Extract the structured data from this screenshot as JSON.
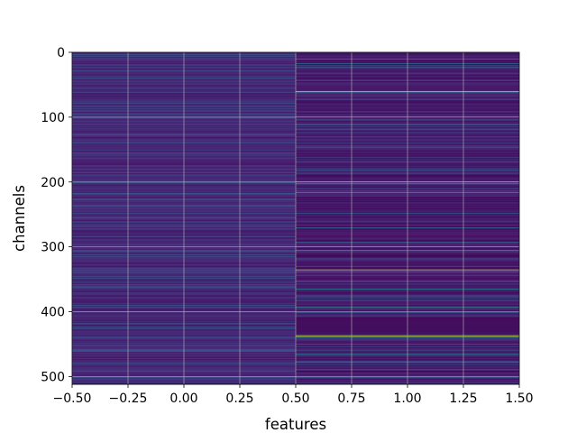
{
  "chart_data": {
    "type": "heatmap",
    "title": "",
    "xlabel": "features",
    "ylabel": "channels",
    "xlim": [
      -0.5,
      1.5
    ],
    "ylim": [
      512,
      0
    ],
    "x_ticks": [
      "−0.50",
      "−0.25",
      "0.00",
      "0.25",
      "0.50",
      "0.75",
      "1.00",
      "1.25",
      "1.50"
    ],
    "x_tick_values": [
      -0.5,
      -0.25,
      0.0,
      0.25,
      0.5,
      0.75,
      1.0,
      1.25,
      1.5
    ],
    "y_ticks": [
      "0",
      "100",
      "200",
      "300",
      "400",
      "500"
    ],
    "y_tick_values": [
      0,
      100,
      200,
      300,
      400,
      500
    ],
    "grid": true,
    "colormap": "viridis",
    "n_rows": 512,
    "n_columns": 2,
    "columns": [
      {
        "feature_index": 0,
        "base_value": 0.12,
        "notes": "mostly uniform dark purple with faint streaks",
        "highlight_rows": [
          {
            "row": 6,
            "value": 0.22
          },
          {
            "row": 22,
            "value": 0.2
          },
          {
            "row": 36,
            "value": 0.2
          },
          {
            "row": 55,
            "value": 0.2
          },
          {
            "row": 78,
            "value": 0.28
          },
          {
            "row": 83,
            "value": 0.25
          },
          {
            "row": 95,
            "value": 0.24
          },
          {
            "row": 112,
            "value": 0.2
          },
          {
            "row": 150,
            "value": 0.22
          },
          {
            "row": 163,
            "value": 0.2
          },
          {
            "row": 201,
            "value": 0.4
          },
          {
            "row": 229,
            "value": 0.22
          },
          {
            "row": 268,
            "value": 0.22
          },
          {
            "row": 297,
            "value": 0.22
          },
          {
            "row": 305,
            "value": 0.25
          },
          {
            "row": 345,
            "value": 0.22
          },
          {
            "row": 360,
            "value": 0.24
          },
          {
            "row": 392,
            "value": 0.26
          },
          {
            "row": 407,
            "value": 0.22
          },
          {
            "row": 440,
            "value": 0.22
          },
          {
            "row": 460,
            "value": 0.22
          },
          {
            "row": 481,
            "value": 0.24
          },
          {
            "row": 500,
            "value": 0.22
          }
        ]
      },
      {
        "feature_index": 1,
        "base_value": 0.08,
        "notes": "darker background with several bright streaks",
        "highlight_rows": [
          {
            "row": 10,
            "value": 0.45
          },
          {
            "row": 17,
            "value": 0.38
          },
          {
            "row": 23,
            "value": 0.4
          },
          {
            "row": 43,
            "value": 0.3
          },
          {
            "row": 60,
            "value": 0.92
          },
          {
            "row": 62,
            "value": 0.55
          },
          {
            "row": 99,
            "value": 0.3
          },
          {
            "row": 118,
            "value": 0.28
          },
          {
            "row": 144,
            "value": 0.3
          },
          {
            "row": 181,
            "value": 0.3
          },
          {
            "row": 199,
            "value": 0.58
          },
          {
            "row": 202,
            "value": 0.5
          },
          {
            "row": 216,
            "value": 0.55
          },
          {
            "row": 248,
            "value": 0.3
          },
          {
            "row": 270,
            "value": 0.36
          },
          {
            "row": 293,
            "value": 0.45
          },
          {
            "row": 305,
            "value": 0.6
          },
          {
            "row": 307,
            "value": 0.45
          },
          {
            "row": 318,
            "value": 0.3
          },
          {
            "row": 335,
            "value": 0.88
          },
          {
            "row": 338,
            "value": 0.55
          },
          {
            "row": 352,
            "value": 0.4
          },
          {
            "row": 365,
            "value": 0.5
          },
          {
            "row": 378,
            "value": 0.38
          },
          {
            "row": 393,
            "value": 0.55
          },
          {
            "row": 401,
            "value": 0.35
          },
          {
            "row": 437,
            "value": 0.92
          },
          {
            "row": 439,
            "value": 0.5
          },
          {
            "row": 450,
            "value": 0.36
          },
          {
            "row": 465,
            "value": 0.42
          },
          {
            "row": 478,
            "value": 0.32
          },
          {
            "row": 489,
            "value": 0.36
          },
          {
            "row": 501,
            "value": 0.3
          }
        ]
      }
    ]
  }
}
